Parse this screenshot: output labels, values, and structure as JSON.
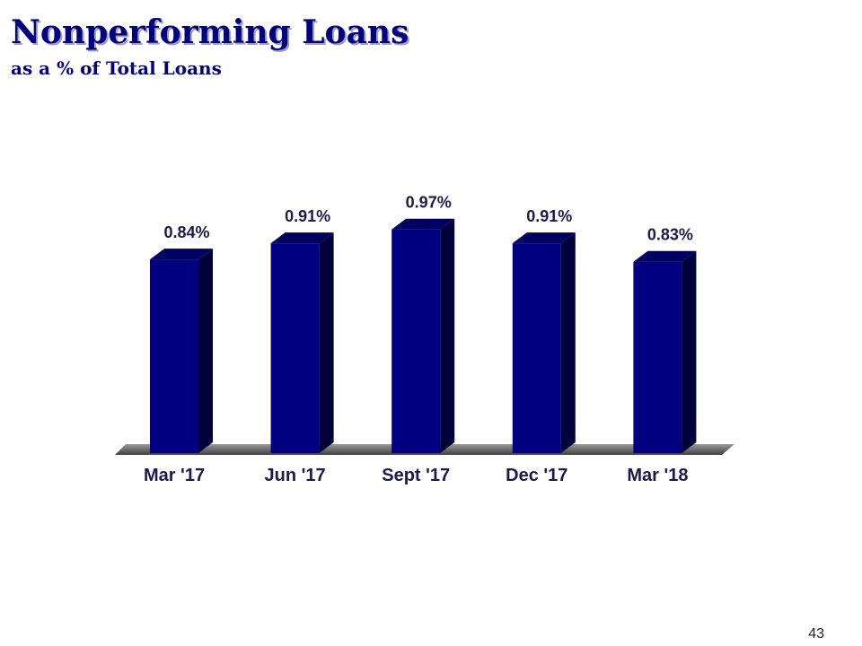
{
  "chart_data": {
    "type": "bar3d",
    "title": "Nonperforming Loans",
    "subtitle": "as a % of Total Loans",
    "categories": [
      "Mar '17",
      "Jun '17",
      "Sept '17",
      "Dec '17",
      "Mar '18"
    ],
    "values": [
      0.84,
      0.91,
      0.97,
      0.91,
      0.83
    ],
    "value_labels": [
      "0.84%",
      "0.91%",
      "0.97%",
      "0.91%",
      "0.83%"
    ],
    "color": "#000080"
  },
  "page_number": "43"
}
